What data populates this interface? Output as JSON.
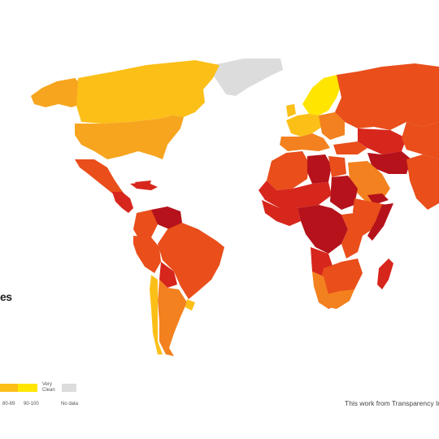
{
  "title_fragment": "es",
  "legend": {
    "very_clean_label": "Very Clean",
    "bins": [
      "80-89",
      "90-100"
    ],
    "no_data_label": "No data",
    "colors": {
      "very_corrupt": "#b5121b",
      "highly_corrupt": "#d7261c",
      "corrupt": "#e94e1b",
      "moderate": "#f3811f",
      "fair": "#f7a51e",
      "clean": "#fbbf18",
      "very_clean": "#ffe500",
      "no_data": "#dcdcdc"
    }
  },
  "credit": "This work from Transparency In"
}
